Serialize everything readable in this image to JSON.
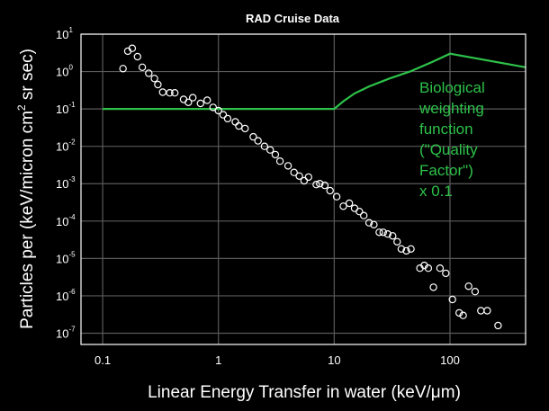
{
  "chart_data": {
    "type": "scatter",
    "title": "RAD Cruise Data",
    "xlabel": "Linear Energy Transfer in water (keV/μm)",
    "ylabel": "Particles per (keV/micron cm² sr sec)",
    "xscale": "log",
    "yscale": "log",
    "xlim": [
      0.065,
      450
    ],
    "ylim": [
      5e-08,
      10
    ],
    "grid": true,
    "x_ticks": [
      {
        "value": 0.1,
        "label": "0.1"
      },
      {
        "value": 1,
        "label": "1"
      },
      {
        "value": 10,
        "label": "10"
      },
      {
        "value": 100,
        "label": "100"
      }
    ],
    "y_ticks": [
      {
        "value": 10,
        "base": "10",
        "exp": "1"
      },
      {
        "value": 1,
        "base": "10",
        "exp": "0"
      },
      {
        "value": 0.1,
        "base": "10",
        "exp": "-1"
      },
      {
        "value": 0.01,
        "base": "10",
        "exp": "-2"
      },
      {
        "value": 0.001,
        "base": "10",
        "exp": "-3"
      },
      {
        "value": 0.0001,
        "base": "10",
        "exp": "-4"
      },
      {
        "value": 1e-05,
        "base": "10",
        "exp": "-5"
      },
      {
        "value": 1e-06,
        "base": "10",
        "exp": "-6"
      },
      {
        "value": 1e-07,
        "base": "10",
        "exp": "-7"
      }
    ],
    "colors": {
      "points": "#ffffff",
      "weighting_curve": "#2ec24a",
      "grid": "#5a5a5a"
    },
    "series": [
      {
        "type": "scatter",
        "points": [
          [
            0.15,
            1.2
          ],
          [
            0.165,
            3.5
          ],
          [
            0.18,
            4.2
          ],
          [
            0.2,
            2.5
          ],
          [
            0.22,
            1.3
          ],
          [
            0.25,
            0.9
          ],
          [
            0.28,
            0.65
          ],
          [
            0.3,
            0.45
          ],
          [
            0.33,
            0.28
          ],
          [
            0.38,
            0.27
          ],
          [
            0.42,
            0.27
          ],
          [
            0.5,
            0.18
          ],
          [
            0.55,
            0.15
          ],
          [
            0.6,
            0.2
          ],
          [
            0.7,
            0.14
          ],
          [
            0.8,
            0.17
          ],
          [
            0.9,
            0.11
          ],
          [
            1.0,
            0.09
          ],
          [
            1.1,
            0.07
          ],
          [
            1.2,
            0.055
          ],
          [
            1.4,
            0.045
          ],
          [
            1.5,
            0.035
          ],
          [
            1.7,
            0.03
          ],
          [
            2.0,
            0.018
          ],
          [
            2.2,
            0.014
          ],
          [
            2.5,
            0.01
          ],
          [
            2.8,
            0.008
          ],
          [
            3.1,
            0.006
          ],
          [
            3.4,
            0.004
          ],
          [
            4.0,
            0.003
          ],
          [
            4.5,
            0.002
          ],
          [
            5.0,
            0.0016
          ],
          [
            5.5,
            0.0012
          ],
          [
            6.0,
            0.0015
          ],
          [
            7.0,
            0.00095
          ],
          [
            7.5,
            0.001
          ],
          [
            8.3,
            0.0009
          ],
          [
            9.2,
            0.00065
          ],
          [
            10.5,
            0.00045
          ],
          [
            12,
            0.00025
          ],
          [
            13.5,
            0.0003
          ],
          [
            15,
            0.00022
          ],
          [
            16.5,
            0.00018
          ],
          [
            18,
            0.00014
          ],
          [
            20,
            9e-05
          ],
          [
            22,
            8e-05
          ],
          [
            24.5,
            5e-05
          ],
          [
            26.5,
            5e-05
          ],
          [
            29,
            4.5e-05
          ],
          [
            32,
            4e-05
          ],
          [
            35,
            2.8e-05
          ],
          [
            38,
            1.8e-05
          ],
          [
            42,
            1.6e-05
          ],
          [
            46,
            1.8e-05
          ],
          [
            55,
            5.5e-06
          ],
          [
            60,
            6.5e-06
          ],
          [
            65,
            5.5e-06
          ],
          [
            72,
            1.7e-06
          ],
          [
            82,
            5.5e-06
          ],
          [
            92,
            4e-06
          ],
          [
            105,
            8e-07
          ],
          [
            120,
            3.5e-07
          ],
          [
            130,
            3e-07
          ],
          [
            145,
            1.8e-06
          ],
          [
            165,
            1.3e-06
          ],
          [
            185,
            4e-07
          ],
          [
            210,
            4e-07
          ],
          [
            260,
            1.6e-07
          ]
        ]
      },
      {
        "type": "line",
        "x": [
          0.1,
          10,
          12,
          15,
          20,
          30,
          45,
          70,
          100,
          450
        ],
        "y": [
          0.1,
          0.1,
          0.16,
          0.26,
          0.4,
          0.65,
          1.0,
          1.8,
          3.0,
          1.3
        ]
      }
    ],
    "annotations": [
      "Biological",
      "weighting",
      "function",
      "(\"Quality",
      "Factor\")",
      " x 0.1"
    ]
  }
}
